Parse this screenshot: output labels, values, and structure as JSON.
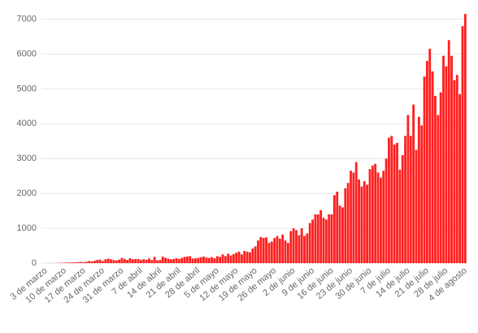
{
  "chart_data": {
    "type": "bar",
    "color": "#ff1f1f",
    "grid": true,
    "ylim": [
      0,
      7200
    ],
    "yticks": [
      0,
      1000,
      2000,
      3000,
      4000,
      5000,
      6000,
      7000
    ],
    "categories": [
      "3 de marzo",
      null,
      null,
      null,
      null,
      null,
      null,
      "10 de marzo",
      null,
      null,
      null,
      null,
      null,
      null,
      "17 de marzo",
      null,
      null,
      null,
      null,
      null,
      null,
      "24 de marzo",
      null,
      null,
      null,
      null,
      null,
      null,
      "31 de marzo",
      null,
      null,
      null,
      null,
      null,
      null,
      "7 de abril",
      null,
      null,
      null,
      null,
      null,
      null,
      "14 de abril",
      null,
      null,
      null,
      null,
      null,
      null,
      "21 de abril",
      null,
      null,
      null,
      null,
      null,
      null,
      "28 de abril",
      null,
      null,
      null,
      null,
      null,
      null,
      "5 de mayo",
      null,
      null,
      null,
      null,
      null,
      null,
      "12 de mayo",
      null,
      null,
      null,
      null,
      null,
      null,
      "19 de mayo",
      null,
      null,
      null,
      null,
      null,
      null,
      "26 de mayo",
      null,
      null,
      null,
      null,
      null,
      null,
      "2 de junio",
      null,
      null,
      null,
      null,
      null,
      null,
      "9 de junio",
      null,
      null,
      null,
      null,
      null,
      null,
      "16 de junio",
      null,
      null,
      null,
      null,
      null,
      null,
      "23 de junio",
      null,
      null,
      null,
      null,
      null,
      null,
      "30 de junio",
      null,
      null,
      null,
      null,
      null,
      null,
      "7 de julio",
      null,
      null,
      null,
      null,
      null,
      null,
      "14 de julio",
      null,
      null,
      null,
      null,
      null,
      null,
      "21 de julio",
      null,
      null,
      null,
      null,
      null,
      null,
      "28 de julio",
      null,
      null,
      null,
      null,
      null,
      null,
      "4 de agosto",
      null
    ],
    "values": [
      0,
      0,
      1,
      2,
      3,
      5,
      8,
      10,
      12,
      15,
      18,
      20,
      25,
      30,
      35,
      30,
      40,
      60,
      50,
      70,
      90,
      100,
      60,
      110,
      130,
      110,
      90,
      80,
      100,
      150,
      120,
      90,
      140,
      110,
      120,
      120,
      90,
      110,
      100,
      130,
      90,
      180,
      80,
      90,
      190,
      150,
      130,
      110,
      120,
      140,
      120,
      150,
      180,
      190,
      200,
      130,
      140,
      150,
      170,
      190,
      160,
      150,
      170,
      140,
      200,
      180,
      250,
      200,
      270,
      220,
      260,
      300,
      330,
      250,
      350,
      330,
      310,
      420,
      480,
      650,
      750,
      720,
      740,
      580,
      620,
      720,
      780,
      700,
      820,
      650,
      580,
      920,
      1000,
      950,
      800,
      1000,
      780,
      850,
      1150,
      1250,
      1400,
      1400,
      1520,
      1300,
      1250,
      1400,
      1400,
      1950,
      2050,
      1650,
      1600,
      2150,
      2300,
      2650,
      2600,
      2900,
      2400,
      2200,
      2350,
      2250,
      2700,
      2800,
      2850,
      2600,
      2450,
      2650,
      3000,
      3600,
      3650,
      3400,
      3450,
      2680,
      3100,
      3650,
      4250,
      3650,
      4550,
      3250,
      4200,
      3950,
      5350,
      5800,
      6150,
      5500,
      4800,
      4250,
      4900,
      5950,
      5650,
      6400,
      5950,
      5250,
      5400,
      4850,
      6800,
      7150
    ]
  }
}
